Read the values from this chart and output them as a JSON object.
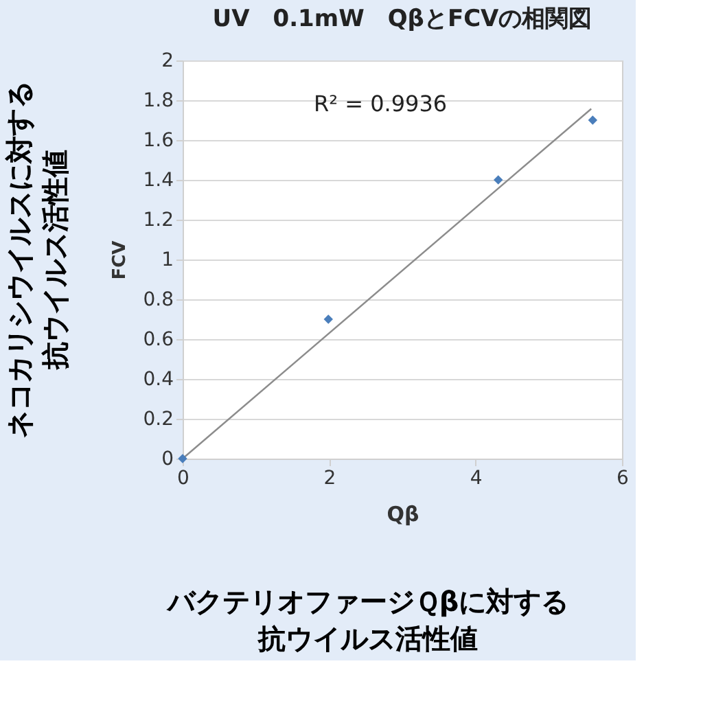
{
  "chart_data": {
    "type": "scatter",
    "title": "UV　0.1mW　QβとFCVの相関図",
    "xlabel": "Qβ",
    "ylabel": "FCV",
    "series": [
      {
        "type": "scatter",
        "color": "#4a7ebb",
        "marker": "diamond",
        "x": [
          0,
          1.99,
          4.31,
          5.6
        ],
        "values": [
          0,
          0.7,
          1.4,
          1.7
        ]
      },
      {
        "type": "line",
        "color": "#8c8c8c",
        "line_style": "solid",
        "x": [
          0,
          5.58
        ],
        "values": [
          0,
          1.757
        ]
      }
    ],
    "xlim": [
      0,
      6
    ],
    "xticks": [
      0,
      2,
      4,
      6
    ],
    "ylim": [
      0,
      2
    ],
    "yticks": [
      0,
      0.2,
      0.4,
      0.6,
      0.8,
      1,
      1.2,
      1.4,
      1.6,
      1.8,
      2
    ],
    "grid": "y",
    "annotations": [
      "R² = 0.9936",
      "ネコカリシウイルスに対する",
      "抗ウイルス活性値",
      "バクテリオファージＱβに対する",
      "抗ウイルス活性値"
    ]
  }
}
